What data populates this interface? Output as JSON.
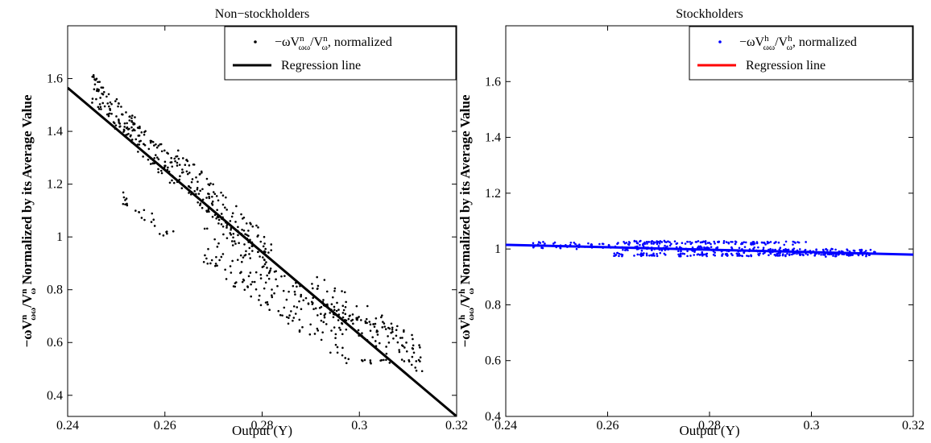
{
  "chart_data": [
    {
      "type": "scatter",
      "title": "Non−stockholders",
      "xlabel": "Output (Y)",
      "ylabel": "−ωVⁿωω/Vⁿω Normalized by its Average Value",
      "xlim": [
        0.24,
        0.32
      ],
      "ylim": [
        0.32,
        1.8
      ],
      "xticks": [
        "0.24",
        "0.26",
        "0.28",
        "0.3",
        "0.32"
      ],
      "yticks": [
        "0.4",
        "0.6",
        "0.8",
        "1",
        "1.2",
        "1.4",
        "1.6"
      ],
      "grid": false,
      "legend_position": "top-right",
      "series": [
        {
          "name": "−ωVⁿωω/Vⁿω, normalized",
          "kind": "scatter",
          "color": "#000000",
          "clusters": [
            {
              "x": [
                0.245,
                0.262
              ],
              "y": [
                1.56,
                1.24
              ],
              "spread": 0.06,
              "n": 170
            },
            {
              "x": [
                0.262,
                0.282
              ],
              "y": [
                1.28,
                0.92
              ],
              "spread": 0.07,
              "n": 170
            },
            {
              "x": [
                0.268,
                0.298
              ],
              "y": [
                0.98,
                0.6
              ],
              "spread": 0.09,
              "n": 170
            },
            {
              "x": [
                0.29,
                0.313
              ],
              "y": [
                0.8,
                0.54
              ],
              "spread": 0.07,
              "n": 110
            },
            {
              "x": [
                0.251,
                0.262
              ],
              "y": [
                1.16,
                0.99
              ],
              "spread": 0.03,
              "n": 24
            },
            {
              "x": [
                0.3,
                0.313
              ],
              "y": [
                0.53,
                0.53
              ],
              "spread": 0.01,
              "n": 16
            },
            {
              "x": [
                0.297,
                0.312
              ],
              "y": [
                0.72,
                0.58
              ],
              "spread": 0.02,
              "n": 20
            }
          ]
        },
        {
          "name": "Regression line",
          "kind": "line",
          "color": "#000000",
          "x": [
            0.24,
            0.32
          ],
          "y": [
            1.565,
            0.32
          ]
        }
      ]
    },
    {
      "type": "scatter",
      "title": "Stockholders",
      "xlabel": "Output (Y)",
      "ylabel": "−ωVʰωω/Vʰω Normalized by its Average Value",
      "xlim": [
        0.24,
        0.32
      ],
      "ylim": [
        0.4,
        1.8
      ],
      "xticks": [
        "0.24",
        "0.26",
        "0.28",
        "0.3",
        "0.32"
      ],
      "yticks": [
        "0.4",
        "0.6",
        "0.8",
        "1",
        "1.2",
        "1.4",
        "1.6"
      ],
      "grid": false,
      "legend_position": "top-right",
      "series": [
        {
          "name": "−ωVʰωω/Vʰω, normalized",
          "kind": "scatter",
          "color": "#0000ff",
          "clusters": [
            {
              "x": [
                0.245,
                0.313
              ],
              "y": [
                1.015,
                0.985
              ],
              "spread": 0.012,
              "n": 260
            },
            {
              "x": [
                0.261,
                0.312
              ],
              "y": [
                0.98,
                0.978
              ],
              "spread": 0.006,
              "n": 140
            },
            {
              "x": [
                0.262,
                0.3
              ],
              "y": [
                1.025,
                1.02
              ],
              "spread": 0.006,
              "n": 120
            }
          ]
        },
        {
          "name": "Regression line",
          "kind": "line",
          "color": "#ff0000",
          "drawn_color": "#0000ff",
          "x": [
            0.24,
            0.32
          ],
          "y": [
            1.015,
            0.98
          ]
        }
      ]
    }
  ],
  "legends": [
    {
      "scatter": {
        "pre": "−ωV",
        "sup": "n",
        "sub": "ωω",
        "mid": "/V",
        "sup2": "n",
        "sub2": "ω",
        "post": ", normalized"
      },
      "line": "Regression line",
      "scatter_color": "#000000",
      "line_color": "#000000"
    },
    {
      "scatter": {
        "pre": "−ωV",
        "sup": "h",
        "sub": "ωω",
        "mid": "/V",
        "sup2": "h",
        "sub2": "ω",
        "post": ", normalized"
      },
      "line": "Regression line",
      "scatter_color": "#0000ff",
      "line_color": "#ff0000"
    }
  ],
  "ylabels": [
    {
      "pre": "−ωV",
      "sup": "n",
      "sub": "ωω",
      "mid": "/V",
      "sup2": "n",
      "sub2": "ω",
      "post": " Normalized by its Average Value"
    },
    {
      "pre": "−ωV",
      "sup": "h",
      "sub": "ωω",
      "mid": "/V",
      "sup2": "h",
      "sub2": "ω",
      "post": " Normalized by its Average Value"
    }
  ]
}
